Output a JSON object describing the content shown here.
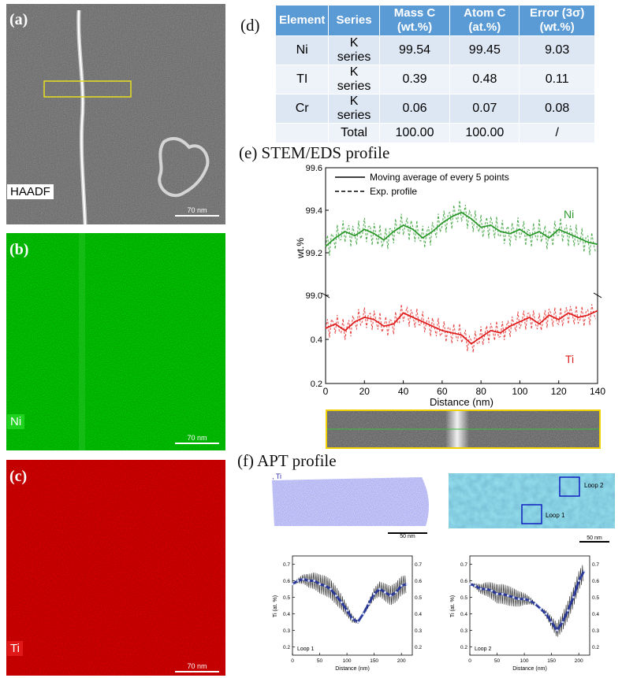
{
  "panels": {
    "a": {
      "label": "(a)",
      "tag": "HAADF",
      "scale": "70 nm"
    },
    "b": {
      "label": "(b)",
      "tag": "Ni",
      "scale": "70 nm"
    },
    "c": {
      "label": "(c)",
      "tag": "Ti",
      "scale": "70 nm"
    }
  },
  "table": {
    "label": "(d)",
    "headers": [
      "Element",
      "Series",
      "Mass C (wt.%)",
      "Atom C (at.%)",
      "Error (3σ) (wt.%)"
    ],
    "rows": [
      [
        "Ni",
        "K series",
        "99.54",
        "99.45",
        "9.03"
      ],
      [
        "TI",
        "K series",
        "0.39",
        "0.48",
        "0.11"
      ],
      [
        "Cr",
        "K series",
        "0.06",
        "0.07",
        "0.08"
      ],
      [
        "",
        "Total",
        "100.00",
        "100.00",
        "/"
      ]
    ]
  },
  "eds": {
    "title": "(e) STEM/EDS profile",
    "legend": [
      "Moving average of every 5 points",
      "Exp. profile"
    ]
  },
  "apt": {
    "title": "(f) APT profile",
    "recon_label": ", Ti",
    "scale_left": "50 nm",
    "scale_right": "50 nm",
    "loop_labels": [
      "Loop 2",
      "Loop 1"
    ]
  },
  "chart_data": [
    {
      "type": "line",
      "xlabel": "Distance (nm)",
      "ylabel": "wt.%",
      "xlim": [
        0,
        140
      ],
      "x_ticks": [
        0,
        20,
        40,
        60,
        80,
        100,
        120,
        140
      ],
      "axis_break": true,
      "upper": {
        "ylim": [
          99.0,
          99.6
        ],
        "y_ticks": [
          99.0,
          99.2,
          99.4,
          99.6
        ]
      },
      "lower": {
        "ylim": [
          0.2,
          0.6
        ],
        "y_ticks": [
          0.2,
          0.4
        ]
      },
      "series": [
        {
          "name": "Ni",
          "color": "#2e9a2e",
          "x": [
            0,
            5,
            10,
            15,
            20,
            25,
            30,
            35,
            40,
            45,
            50,
            55,
            60,
            65,
            70,
            75,
            80,
            85,
            90,
            95,
            100,
            105,
            110,
            115,
            120,
            125,
            130,
            135,
            140
          ],
          "values": [
            99.23,
            99.27,
            99.3,
            99.28,
            99.31,
            99.29,
            99.26,
            99.3,
            99.33,
            99.31,
            99.27,
            99.3,
            99.34,
            99.37,
            99.39,
            99.36,
            99.32,
            99.33,
            99.3,
            99.29,
            99.31,
            99.28,
            99.3,
            99.27,
            99.31,
            99.29,
            99.27,
            99.25,
            99.24
          ]
        },
        {
          "name": "Ti",
          "color": "#e02020",
          "x": [
            0,
            5,
            10,
            15,
            20,
            25,
            30,
            35,
            40,
            45,
            50,
            55,
            60,
            65,
            70,
            75,
            80,
            85,
            90,
            95,
            100,
            105,
            110,
            115,
            120,
            125,
            130,
            135,
            140
          ],
          "values": [
            0.45,
            0.47,
            0.44,
            0.48,
            0.5,
            0.49,
            0.46,
            0.47,
            0.52,
            0.5,
            0.48,
            0.46,
            0.44,
            0.43,
            0.42,
            0.38,
            0.41,
            0.44,
            0.43,
            0.46,
            0.48,
            0.5,
            0.47,
            0.51,
            0.49,
            0.52,
            0.5,
            0.51,
            0.53
          ]
        }
      ]
    },
    {
      "type": "line",
      "xlabel": "Distance (nm)",
      "ylabel": "Ti (at. %)",
      "annotation": "Loop 1",
      "xlim": [
        0,
        220
      ],
      "ylim": [
        0.15,
        0.75
      ],
      "x_ticks": [
        0,
        50,
        100,
        150,
        200
      ],
      "y_ticks": [
        0.2,
        0.3,
        0.4,
        0.5,
        0.6,
        0.7
      ],
      "series": [
        {
          "color": "#1a2a9a",
          "x": [
            0,
            10,
            20,
            30,
            40,
            50,
            60,
            70,
            80,
            90,
            100,
            110,
            120,
            130,
            140,
            150,
            160,
            170,
            180,
            190,
            200,
            210
          ],
          "values": [
            0.58,
            0.6,
            0.61,
            0.6,
            0.6,
            0.58,
            0.57,
            0.55,
            0.51,
            0.47,
            0.42,
            0.37,
            0.35,
            0.4,
            0.46,
            0.52,
            0.55,
            0.53,
            0.51,
            0.53,
            0.57,
            0.58
          ]
        }
      ]
    },
    {
      "type": "line",
      "xlabel": "Distance (nm)",
      "ylabel": "Ti (at. %)",
      "annotation": "Loop 2",
      "xlim": [
        0,
        220
      ],
      "ylim": [
        0.15,
        0.75
      ],
      "x_ticks": [
        0,
        50,
        100,
        150,
        200
      ],
      "y_ticks": [
        0.2,
        0.3,
        0.4,
        0.5,
        0.6,
        0.7
      ],
      "series": [
        {
          "color": "#1a2a9a",
          "x": [
            0,
            10,
            20,
            30,
            40,
            50,
            60,
            70,
            80,
            90,
            100,
            110,
            120,
            130,
            140,
            150,
            160,
            170,
            180,
            190,
            200,
            210
          ],
          "values": [
            0.58,
            0.57,
            0.55,
            0.55,
            0.54,
            0.52,
            0.52,
            0.51,
            0.5,
            0.49,
            0.49,
            0.48,
            0.46,
            0.43,
            0.4,
            0.35,
            0.3,
            0.35,
            0.42,
            0.5,
            0.6,
            0.66
          ]
        }
      ]
    }
  ]
}
